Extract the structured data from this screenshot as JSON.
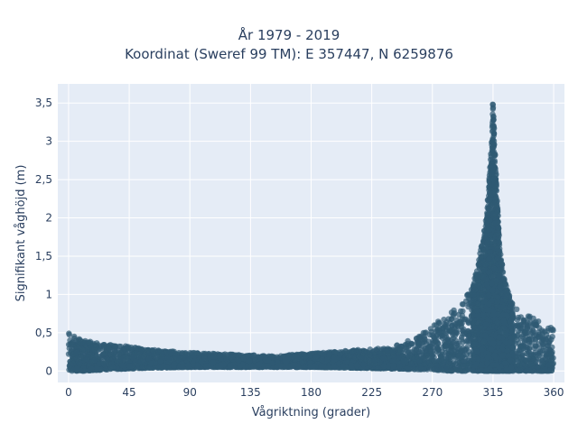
{
  "chart_data": {
    "type": "scatter",
    "title_lines": [
      "År 1979 - 2019",
      "Koordinat (Sweref 99 TM): E 357447, N 6259876"
    ],
    "xlabel": "Vågriktning (grader)",
    "ylabel": "Signifikant våghöjd (m)",
    "xlim": [
      -8,
      368
    ],
    "ylim": [
      -0.15,
      3.75
    ],
    "x_ticks": [
      0,
      45,
      90,
      135,
      180,
      225,
      270,
      315,
      360
    ],
    "x_tick_labels": [
      "0",
      "45",
      "90",
      "135",
      "180",
      "225",
      "270",
      "315",
      "360"
    ],
    "y_ticks": [
      0,
      0.5,
      1,
      1.5,
      2,
      2.5,
      3,
      3.5
    ],
    "y_tick_labels": [
      "0",
      "0,5",
      "1",
      "1,5",
      "2",
      "2,5",
      "3",
      "3,5"
    ],
    "grid": true,
    "marker_color": "#2f5a73",
    "plot_bgcolor": "#e5ecf6",
    "envelope": {
      "x": [
        0,
        10,
        30,
        45,
        60,
        90,
        120,
        150,
        180,
        210,
        240,
        260,
        270,
        280,
        290,
        300,
        305,
        310,
        312,
        314,
        315,
        316,
        318,
        320,
        325,
        330,
        340,
        350,
        360
      ],
      "upper": [
        0.5,
        0.4,
        0.35,
        0.32,
        0.28,
        0.24,
        0.22,
        0.2,
        0.23,
        0.27,
        0.32,
        0.45,
        0.6,
        0.72,
        0.85,
        1.1,
        1.5,
        2.0,
        2.5,
        3.0,
        3.6,
        3.1,
        2.3,
        1.6,
        1.1,
        0.85,
        0.75,
        0.65,
        0.55
      ],
      "lower": [
        0.0,
        0.0,
        0.02,
        0.03,
        0.04,
        0.05,
        0.05,
        0.05,
        0.05,
        0.04,
        0.03,
        0.02,
        0.02,
        0.0,
        0.0,
        0.0,
        0.0,
        0.0,
        0.0,
        0.0,
        0.0,
        0.0,
        0.0,
        0.0,
        0.0,
        0.0,
        0.0,
        0.0,
        0.0
      ]
    }
  }
}
